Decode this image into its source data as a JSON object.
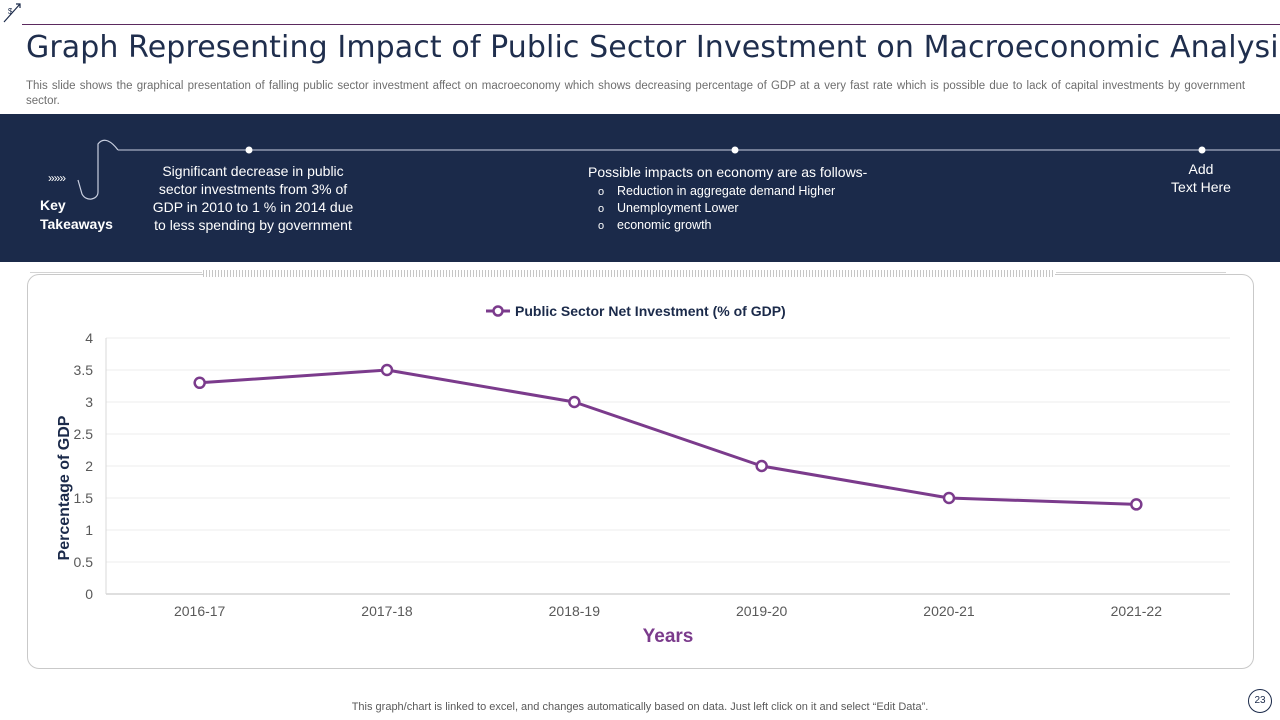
{
  "slide": {
    "title": "Graph Representing Impact of Public Sector Investment on Macroeconomic Analysis",
    "subtitle": "This slide shows the graphical presentation of falling public sector investment affect on macroeconomy which shows decreasing percentage of GDP at a very fast rate which is possible due to lack of capital investments by government  sector.",
    "page_number": "23",
    "footer": "This graph/chart is linked to excel,  and changes automatically based on data. Just left click on it and select “Edit Data”.",
    "colors": {
      "band": "#1b2a4a",
      "series": "#7b3b8c",
      "title": "#1f2e4d"
    }
  },
  "takeaways": {
    "label_line1": "Key",
    "label_line2": "Takeaways",
    "chevrons": "»»»",
    "col1": [
      "Significant decrease in public",
      "sector investments from 3% of",
      "GDP in 2010 to 1 % in 2014 due",
      "to less spending by government"
    ],
    "col2": {
      "heading": "Possible impacts on economy are as follows-",
      "bullets": [
        "Reduction in aggregate demand Higher",
        "Unemployment Lower",
        "economic growth"
      ],
      "bullet_glyph": "o"
    },
    "col3": [
      "Add",
      "Text Here"
    ]
  },
  "chart_data": {
    "type": "line",
    "title": "",
    "legend": "top",
    "xlabel": "Years",
    "ylabel": "Percentage of GDP",
    "categories": [
      "2016-17",
      "2017-18",
      "2018-19",
      "2019-20",
      "2020-21",
      "2021-22"
    ],
    "series": [
      {
        "name": "Public Sector Net Investment (% of GDP)",
        "values": [
          3.3,
          3.5,
          3.0,
          2.0,
          1.5,
          1.4
        ],
        "color": "#7b3b8c"
      }
    ],
    "ylim": [
      0,
      4
    ],
    "yticks": [
      "0",
      "0.5",
      "1",
      "1.5",
      "2",
      "2.5",
      "3",
      "3.5",
      "4"
    ],
    "grid": true
  }
}
